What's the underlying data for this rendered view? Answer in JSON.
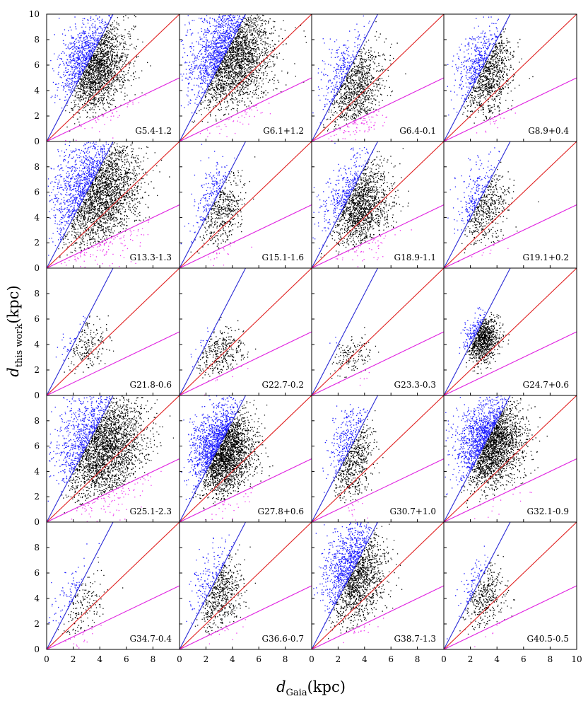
{
  "chart_data": {
    "type": "scatter",
    "grid": "5 rows x 4 columns of panels, shared axes",
    "xlabel": {
      "main": "d",
      "sub": "Gaia",
      "unit": "(kpc)"
    },
    "ylabel": {
      "main": "d",
      "sub": "this work",
      "unit": "(kpc)"
    },
    "xlim": [
      0,
      10
    ],
    "ylim": [
      0,
      10
    ],
    "xticks": [
      "0",
      "2",
      "4",
      "6",
      "8",
      "10"
    ],
    "yticks": [
      "0",
      "2",
      "4",
      "6",
      "8",
      "10"
    ],
    "reference_lines": [
      {
        "name": "y = 2x",
        "slope": 2,
        "color": "#2a2ad6"
      },
      {
        "name": "y = x",
        "slope": 1,
        "color": "#e02020"
      },
      {
        "name": "y = 0.5x",
        "slope": 0.5,
        "color": "#e020e0"
      }
    ],
    "point_colors": {
      "above_2x": "#1a1aff",
      "between": "#000000",
      "below_half": "#ee33ee"
    },
    "panels": [
      {
        "label": "G5.4-1.2",
        "center": [
          3.6,
          5.9
        ],
        "spread": [
          1.2,
          1.8
        ],
        "n": 2400
      },
      {
        "label": "G6.1+1.2",
        "center": [
          3.9,
          6.6
        ],
        "spread": [
          1.5,
          2.0
        ],
        "n": 3000
      },
      {
        "label": "G6.4-0.1",
        "center": [
          3.2,
          4.4
        ],
        "spread": [
          1.1,
          1.8
        ],
        "n": 1200
      },
      {
        "label": "G8.9+0.4",
        "center": [
          3.2,
          5.4
        ],
        "spread": [
          1.0,
          1.7
        ],
        "n": 1200
      },
      {
        "label": "G13.3-1.3",
        "center": [
          3.8,
          5.9
        ],
        "spread": [
          1.6,
          2.2
        ],
        "n": 3000
      },
      {
        "label": "G15.1-1.6",
        "center": [
          3.0,
          4.7
        ],
        "spread": [
          0.9,
          1.6
        ],
        "n": 650
      },
      {
        "label": "G18.9-1.1",
        "center": [
          3.6,
          5.0
        ],
        "spread": [
          1.2,
          1.7
        ],
        "n": 1700
      },
      {
        "label": "G19.1+0.2",
        "center": [
          3.0,
          4.9
        ],
        "spread": [
          0.9,
          1.5
        ],
        "n": 650
      },
      {
        "label": "G21.8-0.6",
        "center": [
          3.0,
          3.9
        ],
        "spread": [
          0.8,
          1.0
        ],
        "n": 220
      },
      {
        "label": "G22.7-0.2",
        "center": [
          3.1,
          3.4
        ],
        "spread": [
          0.9,
          0.9
        ],
        "n": 350
      },
      {
        "label": "G23.3-0.3",
        "center": [
          3.0,
          3.1
        ],
        "spread": [
          0.8,
          0.8
        ],
        "n": 160
      },
      {
        "label": "G24.7+0.6",
        "center": [
          2.9,
          4.4
        ],
        "spread": [
          0.6,
          0.9
        ],
        "n": 1000
      },
      {
        "label": "G25.1-2.3",
        "center": [
          4.2,
          6.0
        ],
        "spread": [
          1.6,
          2.1
        ],
        "n": 3000
      },
      {
        "label": "G27.8+0.6",
        "center": [
          3.3,
          5.6
        ],
        "spread": [
          1.1,
          1.7
        ],
        "n": 3000
      },
      {
        "label": "G30.7+1.0",
        "center": [
          3.0,
          5.2
        ],
        "spread": [
          0.8,
          1.8
        ],
        "n": 800
      },
      {
        "label": "G32.1-0.9",
        "center": [
          3.6,
          6.2
        ],
        "spread": [
          1.2,
          1.7
        ],
        "n": 2800
      },
      {
        "label": "G34.7-0.4",
        "center": [
          2.4,
          3.6
        ],
        "spread": [
          0.9,
          1.5
        ],
        "n": 250
      },
      {
        "label": "G36.6-0.7",
        "center": [
          3.0,
          4.5
        ],
        "spread": [
          0.9,
          1.5
        ],
        "n": 700
      },
      {
        "label": "G38.7-1.3",
        "center": [
          3.2,
          6.0
        ],
        "spread": [
          1.1,
          1.9
        ],
        "n": 1900
      },
      {
        "label": "G40.5-0.5",
        "center": [
          3.0,
          4.4
        ],
        "spread": [
          0.8,
          1.3
        ],
        "n": 450
      }
    ]
  }
}
